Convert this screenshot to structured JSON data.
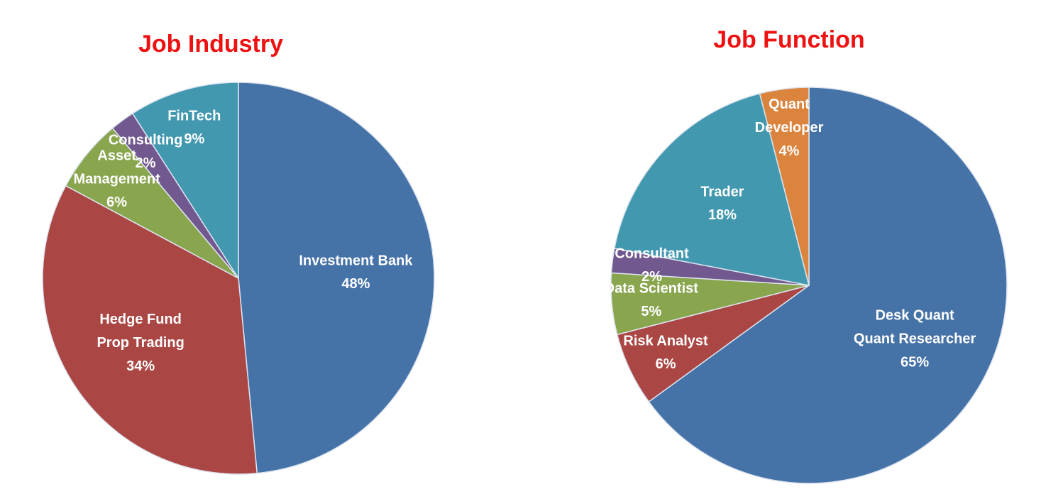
{
  "chart_data": [
    {
      "type": "pie",
      "title": "Job Industry",
      "categories": [
        "Investment Bank",
        "Hedge Fund\nProp Trading",
        "Asset\nManagement",
        "Consulting",
        "FinTech"
      ],
      "values": [
        48,
        34,
        6,
        2,
        9
      ],
      "value_labels": [
        "48%",
        "34%",
        "6%",
        "2%",
        "9%"
      ],
      "colors": [
        "#4572a7",
        "#aa4643",
        "#89a54e",
        "#71588f",
        "#4198af"
      ]
    },
    {
      "type": "pie",
      "title": "Job Function",
      "categories": [
        "Desk Quant\nQuant Researcher",
        "Risk Analyst",
        "Data Scientist",
        "Consultant",
        "Trader",
        "Quant\nDeveloper"
      ],
      "values": [
        65,
        6,
        5,
        2,
        18,
        4
      ],
      "value_labels": [
        "65%",
        "6%",
        "5%",
        "2%",
        "18%",
        "4%"
      ],
      "colors": [
        "#4572a7",
        "#aa4643",
        "#89a54e",
        "#71588f",
        "#4198af",
        "#db843d"
      ]
    }
  ]
}
